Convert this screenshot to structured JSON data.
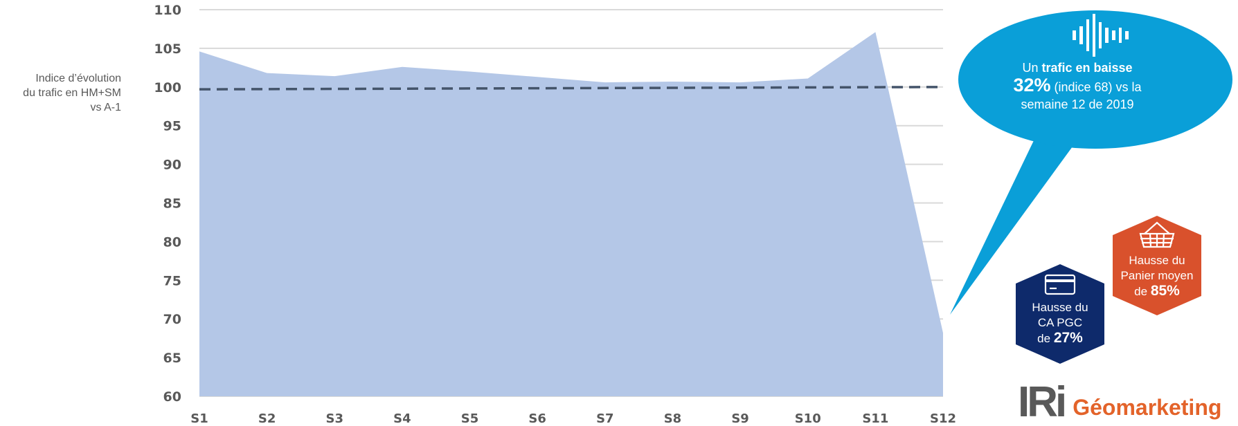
{
  "chart_data": {
    "type": "area",
    "categories": [
      "S1",
      "S2",
      "S3",
      "S4",
      "S5",
      "S6",
      "S7",
      "S8",
      "S9",
      "S10",
      "S11",
      "S12"
    ],
    "series": [
      {
        "values": [
          104.6,
          101.8,
          101.4,
          102.6,
          102.0,
          101.3,
          100.6,
          100.7,
          100.6,
          101.1,
          107.1,
          68.2
        ]
      }
    ],
    "reference_line": {
      "from": 99.7,
      "to": 100.0,
      "style": "dashed"
    },
    "ylim": [
      60,
      110
    ],
    "yticks": [
      "110",
      "105",
      "100",
      "95",
      "90",
      "85",
      "80",
      "75",
      "70",
      "65",
      "60"
    ],
    "ylabel": "Indice d’évolution\ndu trafic en HM+SM\nvs A-1",
    "xlabel": "",
    "grid": true,
    "colors": {
      "area": "#b4c7e7",
      "reference": "#44546a",
      "grid": "#d9d9d9"
    }
  },
  "callout": {
    "prefix": "Un",
    "bold": "trafic en baisse",
    "percent": "32%",
    "detail": "(indice 68) vs la",
    "line3": "semaine 12 de 2019",
    "icon": "audio-waveform-icon",
    "color": "#0a9fd8"
  },
  "badge_ca": {
    "line1": "Hausse du",
    "line2": "CA PGC",
    "prefix": "de",
    "value": "27%",
    "icon": "credit-card-icon",
    "color": "#0e2a6b"
  },
  "badge_panier": {
    "line1": "Hausse du",
    "line2": "Panier moyen",
    "prefix": "de",
    "value": "85%",
    "icon": "shopping-basket-icon",
    "color": "#d9512c"
  },
  "logo": {
    "brand": "IRi",
    "product": "Géomarketing",
    "product_color": "#e3632a"
  }
}
